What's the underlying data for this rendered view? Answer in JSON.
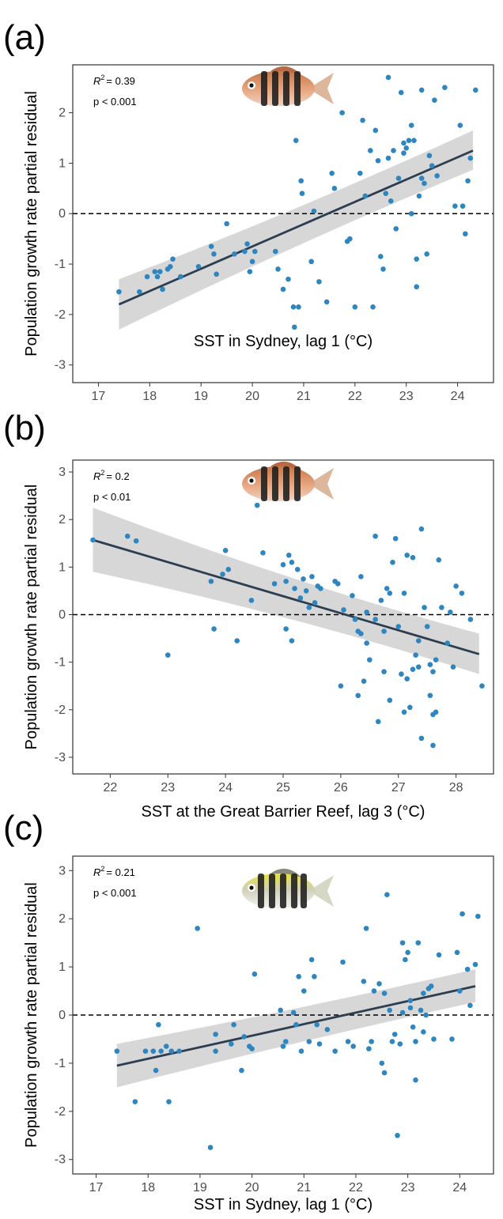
{
  "chart_data": [
    {
      "type": "scatter",
      "panel_label": "(a)",
      "r2_label": "R",
      "r2_value": "= 0.39",
      "p_label": "p < 0.001",
      "xlabel": "SST in Sydney, lag 1 (°C)",
      "ylabel": "Population growth rate partial residual",
      "xlim": [
        16.5,
        24.7
      ],
      "ylim": [
        -3.35,
        2.95
      ],
      "xticks": [
        17,
        18,
        19,
        20,
        21,
        22,
        23,
        24
      ],
      "yticks": [
        -3,
        -2,
        -1,
        0,
        1,
        2
      ],
      "reference_line_y": 0,
      "fit": {
        "x": [
          17.4,
          24.3
        ],
        "y": [
          -1.8,
          1.25
        ],
        "ci_lower_end": [
          -2.3,
          0.87
        ],
        "ci_upper_end": [
          -1.3,
          1.65
        ]
      },
      "point_color": "#2e86c1",
      "line_color": "#2c3e50",
      "band_color": "#d3d3d3",
      "fish_style": "orange",
      "points": [
        [
          17.4,
          -1.55
        ],
        [
          17.8,
          -1.55
        ],
        [
          17.95,
          -1.25
        ],
        [
          18.1,
          -1.15
        ],
        [
          18.15,
          -1.25
        ],
        [
          18.2,
          -1.15
        ],
        [
          18.25,
          -1.5
        ],
        [
          18.35,
          -1.1
        ],
        [
          18.4,
          -1.05
        ],
        [
          18.45,
          -0.9
        ],
        [
          18.6,
          -1.25
        ],
        [
          18.95,
          -1.05
        ],
        [
          19.2,
          -0.65
        ],
        [
          19.25,
          -0.8
        ],
        [
          19.3,
          -1.2
        ],
        [
          19.5,
          -0.2
        ],
        [
          19.65,
          -0.8
        ],
        [
          19.85,
          -0.75
        ],
        [
          19.9,
          -0.6
        ],
        [
          19.95,
          -1.15
        ],
        [
          20.0,
          -0.95
        ],
        [
          20.05,
          -0.75
        ],
        [
          20.45,
          -0.75
        ],
        [
          20.5,
          -1.1
        ],
        [
          20.6,
          -1.5
        ],
        [
          20.7,
          -1.3
        ],
        [
          20.8,
          -1.85
        ],
        [
          20.82,
          -2.25
        ],
        [
          20.85,
          1.45
        ],
        [
          20.9,
          -1.85
        ],
        [
          20.95,
          0.65
        ],
        [
          20.97,
          0.4
        ],
        [
          21.15,
          -0.95
        ],
        [
          21.2,
          0.05
        ],
        [
          21.3,
          -1.35
        ],
        [
          21.45,
          -1.75
        ],
        [
          21.55,
          0.8
        ],
        [
          21.6,
          0.5
        ],
        [
          21.75,
          2.0
        ],
        [
          21.85,
          -0.55
        ],
        [
          21.9,
          -0.5
        ],
        [
          22.0,
          -1.85
        ],
        [
          22.1,
          0.8
        ],
        [
          22.15,
          1.85
        ],
        [
          22.2,
          0.35
        ],
        [
          22.3,
          1.25
        ],
        [
          22.35,
          -1.85
        ],
        [
          22.4,
          1.65
        ],
        [
          22.45,
          1.05
        ],
        [
          22.5,
          -0.85
        ],
        [
          22.55,
          -1.1
        ],
        [
          22.6,
          0.4
        ],
        [
          22.65,
          2.7
        ],
        [
          22.65,
          1.1
        ],
        [
          22.7,
          0.25
        ],
        [
          22.75,
          1.25
        ],
        [
          22.8,
          -0.3
        ],
        [
          22.85,
          0.7
        ],
        [
          22.9,
          2.4
        ],
        [
          22.95,
          1.2
        ],
        [
          22.95,
          1.4
        ],
        [
          23.0,
          1.3
        ],
        [
          23.05,
          1.45
        ],
        [
          23.1,
          1.75
        ],
        [
          23.15,
          1.45
        ],
        [
          23.1,
          0.0
        ],
        [
          23.2,
          -0.9
        ],
        [
          23.2,
          -1.45
        ],
        [
          23.25,
          0.35
        ],
        [
          23.3,
          2.45
        ],
        [
          23.3,
          0.7
        ],
        [
          23.35,
          0.6
        ],
        [
          23.4,
          -0.8
        ],
        [
          23.45,
          1.15
        ],
        [
          23.5,
          0.95
        ],
        [
          23.55,
          2.25
        ],
        [
          23.6,
          0.75
        ],
        [
          23.75,
          2.5
        ],
        [
          23.95,
          0.15
        ],
        [
          24.05,
          1.75
        ],
        [
          24.1,
          0.15
        ],
        [
          24.15,
          -0.4
        ],
        [
          24.2,
          0.65
        ],
        [
          24.25,
          1.1
        ],
        [
          24.35,
          2.45
        ]
      ]
    },
    {
      "type": "scatter",
      "panel_label": "(b)",
      "r2_label": "R",
      "r2_value": "= 0.2",
      "p_label": "p < 0.01",
      "xlabel": "SST at the Great Barrier Reef, lag 3 (°C)",
      "ylabel": "Population growth rate partial residual",
      "xlim": [
        21.35,
        28.65
      ],
      "ylim": [
        -3.35,
        3.25
      ],
      "xticks": [
        22,
        23,
        24,
        25,
        26,
        27,
        28
      ],
      "yticks": [
        -3,
        -2,
        -1,
        0,
        1,
        2,
        3
      ],
      "reference_line_y": 0,
      "fit": {
        "x": [
          21.7,
          28.4
        ],
        "y": [
          1.57,
          -0.83
        ],
        "ci_lower_end": [
          0.9,
          -1.25
        ],
        "ci_upper_end": [
          2.25,
          -0.4
        ]
      },
      "point_color": "#2e86c1",
      "line_color": "#2c3e50",
      "band_color": "#d3d3d3",
      "fish_style": "orange",
      "points": [
        [
          21.7,
          1.57
        ],
        [
          22.3,
          1.65
        ],
        [
          22.45,
          1.55
        ],
        [
          23.0,
          -0.85
        ],
        [
          23.75,
          0.7
        ],
        [
          23.8,
          -0.3
        ],
        [
          23.95,
          0.85
        ],
        [
          24.0,
          1.35
        ],
        [
          24.05,
          0.95
        ],
        [
          24.2,
          -0.55
        ],
        [
          24.45,
          0.3
        ],
        [
          24.55,
          2.3
        ],
        [
          24.65,
          1.3
        ],
        [
          24.85,
          0.65
        ],
        [
          25.0,
          1.05
        ],
        [
          25.05,
          0.7
        ],
        [
          25.05,
          -0.3
        ],
        [
          25.1,
          1.25
        ],
        [
          25.15,
          -0.55
        ],
        [
          25.15,
          1.1
        ],
        [
          25.2,
          0.55
        ],
        [
          25.25,
          0.95
        ],
        [
          25.3,
          0.35
        ],
        [
          25.35,
          0.75
        ],
        [
          25.4,
          0.5
        ],
        [
          25.45,
          0.15
        ],
        [
          25.5,
          0.8
        ],
        [
          25.55,
          0.25
        ],
        [
          25.6,
          0.6
        ],
        [
          25.65,
          0.55
        ],
        [
          25.9,
          0.7
        ],
        [
          25.95,
          0.65
        ],
        [
          26.0,
          -1.5
        ],
        [
          26.05,
          0.1
        ],
        [
          26.2,
          0.4
        ],
        [
          26.25,
          -0.1
        ],
        [
          26.3,
          -0.35
        ],
        [
          26.3,
          -1.7
        ],
        [
          26.35,
          -0.4
        ],
        [
          26.35,
          0.8
        ],
        [
          26.4,
          -1.4
        ],
        [
          26.45,
          0.05
        ],
        [
          26.45,
          -0.6
        ],
        [
          26.5,
          -0.95
        ],
        [
          26.6,
          1.65
        ],
        [
          26.6,
          -0.1
        ],
        [
          26.65,
          -2.25
        ],
        [
          26.7,
          0.3
        ],
        [
          26.75,
          -0.35
        ],
        [
          26.75,
          -1.2
        ],
        [
          26.8,
          0.55
        ],
        [
          26.85,
          -1.8
        ],
        [
          26.85,
          0.45
        ],
        [
          26.9,
          1.1
        ],
        [
          26.95,
          1.6
        ],
        [
          27.0,
          -0.25
        ],
        [
          27.05,
          -1.25
        ],
        [
          27.1,
          -2.05
        ],
        [
          27.1,
          0.45
        ],
        [
          27.15,
          1.25
        ],
        [
          27.15,
          -1.35
        ],
        [
          27.2,
          -1.95
        ],
        [
          27.25,
          1.2
        ],
        [
          27.25,
          -1.15
        ],
        [
          27.3,
          -0.85
        ],
        [
          27.35,
          -1.1
        ],
        [
          27.35,
          -0.55
        ],
        [
          27.4,
          1.8
        ],
        [
          27.4,
          -2.6
        ],
        [
          27.45,
          0.15
        ],
        [
          27.5,
          -0.25
        ],
        [
          27.55,
          -1.05
        ],
        [
          27.55,
          -1.7
        ],
        [
          27.6,
          -2.75
        ],
        [
          27.6,
          -2.1
        ],
        [
          27.6,
          -1.2
        ],
        [
          27.65,
          -2.05
        ],
        [
          27.65,
          -0.95
        ],
        [
          27.7,
          1.15
        ],
        [
          27.75,
          0.15
        ],
        [
          27.85,
          -0.6
        ],
        [
          27.9,
          0.05
        ],
        [
          27.95,
          -1.1
        ],
        [
          28.0,
          0.6
        ],
        [
          28.1,
          0.45
        ],
        [
          28.25,
          -0.1
        ],
        [
          28.45,
          -1.5
        ]
      ]
    },
    {
      "type": "scatter",
      "panel_label": "(c)",
      "r2_label": "R",
      "r2_value": "= 0.21",
      "p_label": "p < 0.001",
      "xlabel": "SST in Sydney, lag 1 (°C)",
      "ylabel": "Population growth rate partial residual",
      "xlim": [
        16.55,
        24.65
      ],
      "ylim": [
        -3.3,
        3.3
      ],
      "xticks": [
        17,
        18,
        19,
        20,
        21,
        22,
        23,
        24
      ],
      "yticks": [
        -3,
        -2,
        -1,
        0,
        1,
        2,
        3
      ],
      "reference_line_y": 0,
      "fit": {
        "x": [
          17.4,
          24.3
        ],
        "y": [
          -1.05,
          0.6
        ],
        "ci_lower_end": [
          -1.5,
          0.27
        ],
        "ci_upper_end": [
          -0.6,
          0.95
        ]
      },
      "point_color": "#2e86c1",
      "line_color": "#2c3e50",
      "band_color": "#d3d3d3",
      "fish_style": "yellow",
      "points": [
        [
          17.4,
          -0.75
        ],
        [
          17.75,
          -1.8
        ],
        [
          17.95,
          -0.75
        ],
        [
          18.1,
          -0.75
        ],
        [
          18.15,
          -1.15
        ],
        [
          18.2,
          -0.2
        ],
        [
          18.25,
          -0.75
        ],
        [
          18.35,
          -0.65
        ],
        [
          18.4,
          -1.8
        ],
        [
          18.45,
          -0.75
        ],
        [
          18.6,
          -0.75
        ],
        [
          18.95,
          1.8
        ],
        [
          19.2,
          -2.75
        ],
        [
          19.3,
          -0.75
        ],
        [
          19.3,
          -0.4
        ],
        [
          19.6,
          -0.6
        ],
        [
          19.65,
          -0.2
        ],
        [
          19.8,
          -1.15
        ],
        [
          19.85,
          -0.45
        ],
        [
          19.95,
          -0.65
        ],
        [
          20.0,
          -0.7
        ],
        [
          20.05,
          0.85
        ],
        [
          20.55,
          0.1
        ],
        [
          20.6,
          -0.65
        ],
        [
          20.65,
          -0.55
        ],
        [
          20.8,
          0.05
        ],
        [
          20.85,
          -0.2
        ],
        [
          20.9,
          0.8
        ],
        [
          20.95,
          -0.75
        ],
        [
          21.0,
          0.5
        ],
        [
          21.1,
          -0.55
        ],
        [
          21.15,
          1.15
        ],
        [
          21.2,
          0.8
        ],
        [
          21.25,
          -0.2
        ],
        [
          21.3,
          -0.6
        ],
        [
          21.45,
          -0.3
        ],
        [
          21.6,
          -0.75
        ],
        [
          21.75,
          1.1
        ],
        [
          21.85,
          -0.55
        ],
        [
          21.95,
          -0.65
        ],
        [
          22.15,
          0.7
        ],
        [
          22.2,
          1.8
        ],
        [
          22.25,
          -0.7
        ],
        [
          22.3,
          -0.55
        ],
        [
          22.35,
          0.5
        ],
        [
          22.45,
          0.65
        ],
        [
          22.5,
          -1.0
        ],
        [
          22.55,
          -1.2
        ],
        [
          22.55,
          0.45
        ],
        [
          22.6,
          2.5
        ],
        [
          22.65,
          0.1
        ],
        [
          22.7,
          -0.55
        ],
        [
          22.75,
          -0.4
        ],
        [
          22.8,
          -2.5
        ],
        [
          22.85,
          -0.6
        ],
        [
          22.9,
          0.05
        ],
        [
          22.9,
          1.5
        ],
        [
          22.95,
          1.15
        ],
        [
          23.0,
          1.3
        ],
        [
          23.05,
          0.3
        ],
        [
          23.05,
          0.15
        ],
        [
          23.1,
          -0.25
        ],
        [
          23.15,
          -1.35
        ],
        [
          23.15,
          -0.55
        ],
        [
          23.2,
          1.5
        ],
        [
          23.25,
          0.1
        ],
        [
          23.3,
          -0.35
        ],
        [
          23.3,
          0.45
        ],
        [
          23.35,
          0.0
        ],
        [
          23.4,
          0.55
        ],
        [
          23.45,
          0.6
        ],
        [
          23.5,
          -0.5
        ],
        [
          23.6,
          1.25
        ],
        [
          23.85,
          -0.5
        ],
        [
          23.95,
          1.3
        ],
        [
          24.0,
          0.5
        ],
        [
          24.05,
          2.1
        ],
        [
          24.15,
          0.95
        ],
        [
          24.2,
          0.2
        ],
        [
          24.3,
          1.05
        ],
        [
          24.35,
          2.05
        ]
      ]
    }
  ]
}
